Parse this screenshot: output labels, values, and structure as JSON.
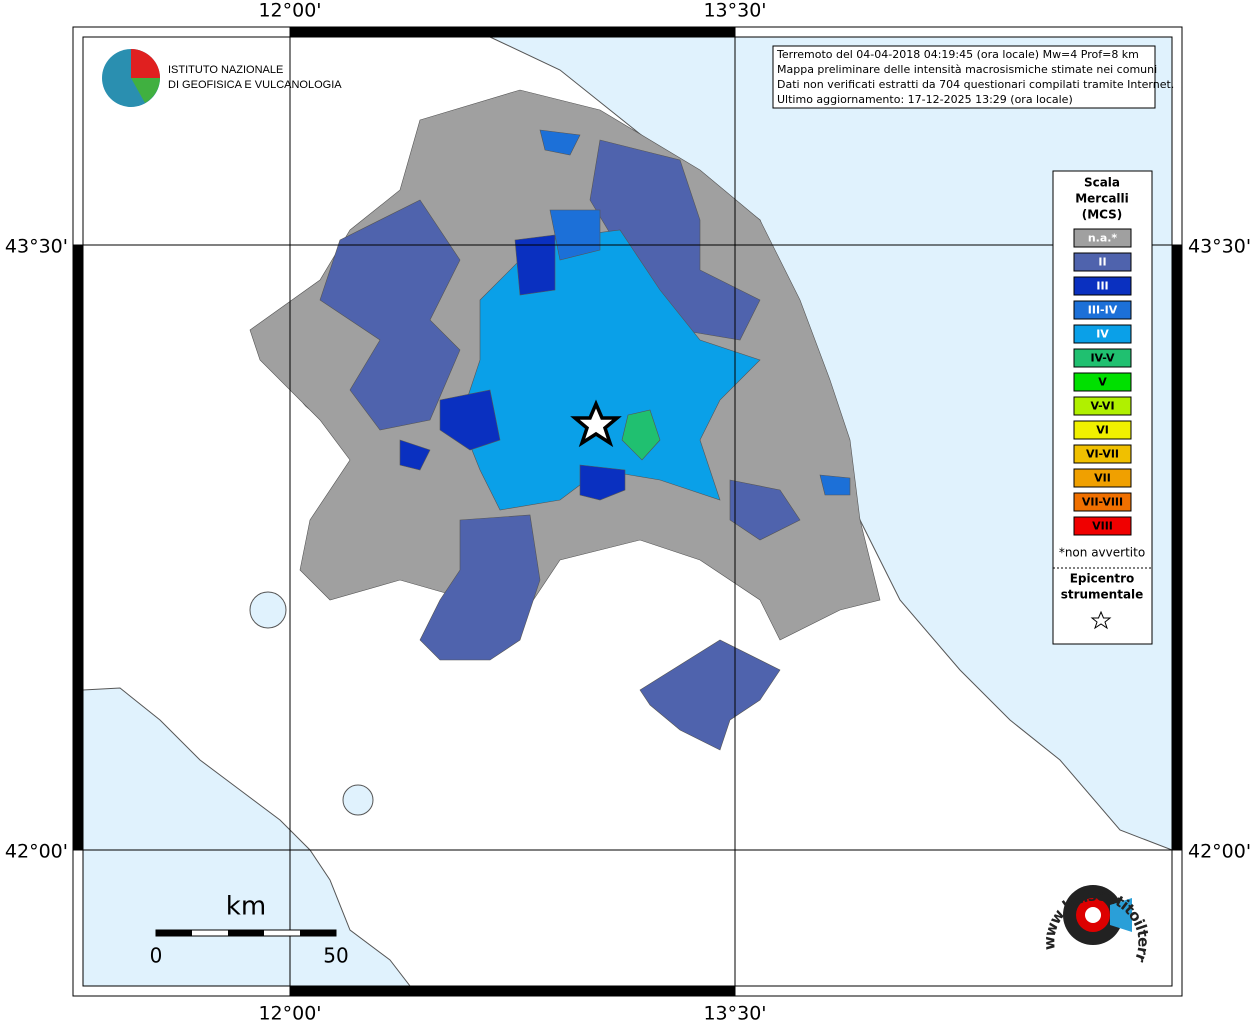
{
  "map": {
    "lon_labels": [
      "12°00'",
      "13°30'"
    ],
    "lat_labels": [
      "43°30'",
      "42°00'"
    ],
    "institute": [
      "ISTITUTO NAZIONALE",
      "DI GEOFISICA E VULCANOLOGIA"
    ],
    "info": [
      "Terremoto del 04-04-2018 04:19:45 (ora locale) Mw=4 Prof=8 km",
      "Mappa preliminare delle intensità macrosismiche stimate nei comuni",
      "Dati non verificati estratti da 704 questionari compilati tramite Internet.",
      "Ultimo aggiornamento: 17-12-2025 13:29 (ora locale)"
    ],
    "legend": {
      "title": [
        "Scala",
        "Mercalli",
        "(MCS)"
      ],
      "items": [
        {
          "label": "n.a.*",
          "color": "#a0a0a0"
        },
        {
          "label": "II",
          "color": "#4f63ad"
        },
        {
          "label": "III",
          "color": "#0a30c0"
        },
        {
          "label": "III-IV",
          "color": "#1c70d8"
        },
        {
          "label": "IV",
          "color": "#0aa0e8"
        },
        {
          "label": "IV-V",
          "color": "#20c070"
        },
        {
          "label": "V",
          "color": "#00e000"
        },
        {
          "label": "V-VI",
          "color": "#b0f000"
        },
        {
          "label": "VI",
          "color": "#f0f000"
        },
        {
          "label": "VI-VII",
          "color": "#f0c000"
        },
        {
          "label": "VII",
          "color": "#f0a000"
        },
        {
          "label": "VII-VIII",
          "color": "#f07000"
        },
        {
          "label": "VIII",
          "color": "#f00000"
        }
      ],
      "note": "*non avvertito",
      "epicenter": [
        "Epicentro",
        "strumentale"
      ]
    },
    "scale_bar": {
      "unit": "km",
      "labels": [
        "0",
        "50"
      ]
    },
    "logo": "www.haisentitoilterremoto.it"
  }
}
